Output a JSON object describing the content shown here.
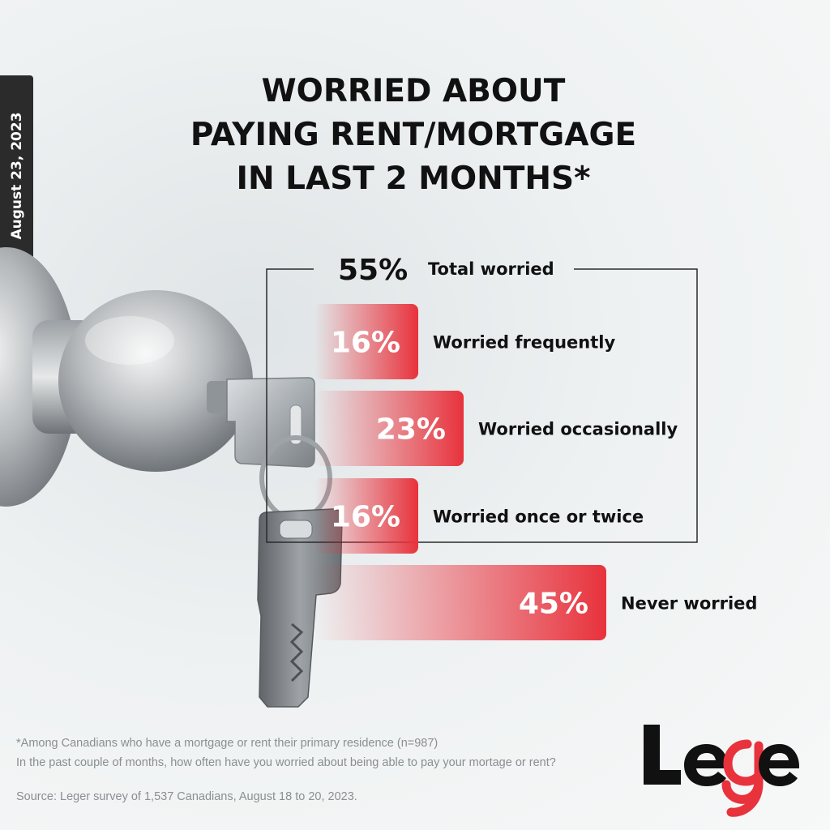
{
  "date_tab": "August 23, 2023",
  "title_lines": [
    "WORRIED ABOUT",
    "PAYING RENT/MORTGAGE",
    "IN LAST 2 MONTHS*"
  ],
  "colors": {
    "bar": "#e8323c",
    "bracket": "#2b2b2b",
    "text": "#111111"
  },
  "chart_data": {
    "type": "bar",
    "orientation": "horizontal",
    "title": "WORRIED ABOUT PAYING RENT/MORTGAGE IN LAST 2 MONTHS*",
    "unit": "%",
    "categories": [
      "Worried frequently",
      "Worried occasionally",
      "Worried once or twice",
      "Never worried"
    ],
    "values": [
      16,
      23,
      16,
      45
    ],
    "value_labels": [
      "16%",
      "23%",
      "16%",
      "45%"
    ],
    "group": {
      "name": "Total worried",
      "value": 55,
      "label": "55%",
      "members": [
        "Worried frequently",
        "Worried occasionally",
        "Worried once or twice"
      ]
    }
  },
  "footnotes": {
    "base": "*Among Canadians who have a mortgage or rent their primary residence (n=987)",
    "question": "In the past couple of months, how often have you worried about being able to pay your mortage or rent?",
    "source": "Source: Leger survey of 1,537 Canadians, August 18 to 20, 2023."
  },
  "logo": {
    "text": "Leger",
    "icon": "leger-logo"
  }
}
